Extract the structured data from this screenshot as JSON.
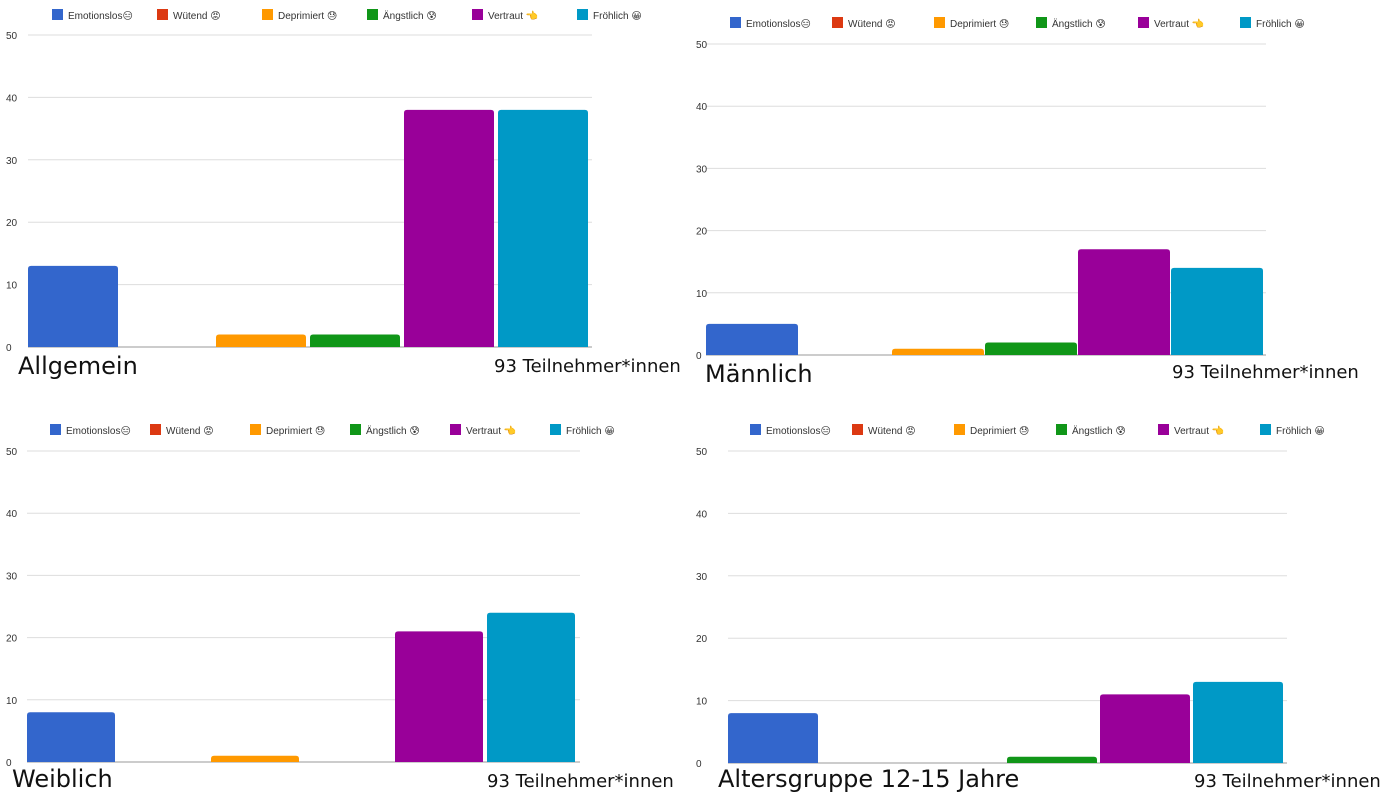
{
  "legend": [
    {
      "label": "Emotionslos😑",
      "color": "#3366cc"
    },
    {
      "label": "Wütend 😡",
      "color": "#dc3912"
    },
    {
      "label": "Deprimiert 😓",
      "color": "#ff9900"
    },
    {
      "label": "Ängstlich 😰",
      "color": "#109618"
    },
    {
      "label": "Vertraut 👈",
      "color": "#990099"
    },
    {
      "label": "Fröhlich 😀",
      "color": "#0099c6"
    }
  ],
  "chart_data": [
    {
      "type": "bar",
      "title": "Allgemein",
      "note": "93 Teilnehmer*innen",
      "categories": [
        "Emotionslos😑",
        "Wütend 😡",
        "Deprimiert 😓",
        "Ängstlich 😰",
        "Vertraut 👈",
        "Fröhlich 😀"
      ],
      "values": [
        13,
        0,
        2,
        2,
        38,
        38
      ],
      "yticks": [
        0,
        10,
        20,
        30,
        40,
        50
      ],
      "ylim": [
        0,
        50
      ],
      "grid": true,
      "legend_position": "top"
    },
    {
      "type": "bar",
      "title": "Männlich",
      "note": "93 Teilnehmer*innen",
      "categories": [
        "Emotionslos😑",
        "Wütend 😡",
        "Deprimiert 😓",
        "Ängstlich 😰",
        "Vertraut 👈",
        "Fröhlich 😀"
      ],
      "values": [
        5,
        0,
        1,
        2,
        17,
        14
      ],
      "yticks": [
        0,
        10,
        20,
        30,
        40,
        50
      ],
      "ylim": [
        0,
        50
      ],
      "grid": true,
      "legend_position": "top"
    },
    {
      "type": "bar",
      "title": "Weiblich",
      "note": "93 Teilnehmer*innen",
      "categories": [
        "Emotionslos😑",
        "Wütend 😡",
        "Deprimiert 😓",
        "Ängstlich 😰",
        "Vertraut 👈",
        "Fröhlich 😀"
      ],
      "values": [
        8,
        0,
        1,
        0,
        21,
        24
      ],
      "yticks": [
        0,
        10,
        20,
        30,
        40,
        50
      ],
      "ylim": [
        0,
        50
      ],
      "grid": true,
      "legend_position": "top"
    },
    {
      "type": "bar",
      "title": "Altersgruppe  12-15 Jahre",
      "note": "93 Teilnehmer*innen",
      "categories": [
        "Emotionslos😑",
        "Wütend 😡",
        "Deprimiert 😓",
        "Ängstlich 😰",
        "Vertraut 👈",
        "Fröhlich 😀"
      ],
      "values": [
        8,
        0,
        0,
        1,
        11,
        13
      ],
      "yticks": [
        0,
        10,
        20,
        30,
        40,
        50
      ],
      "ylim": [
        0,
        50
      ],
      "grid": true,
      "legend_position": "top"
    }
  ]
}
